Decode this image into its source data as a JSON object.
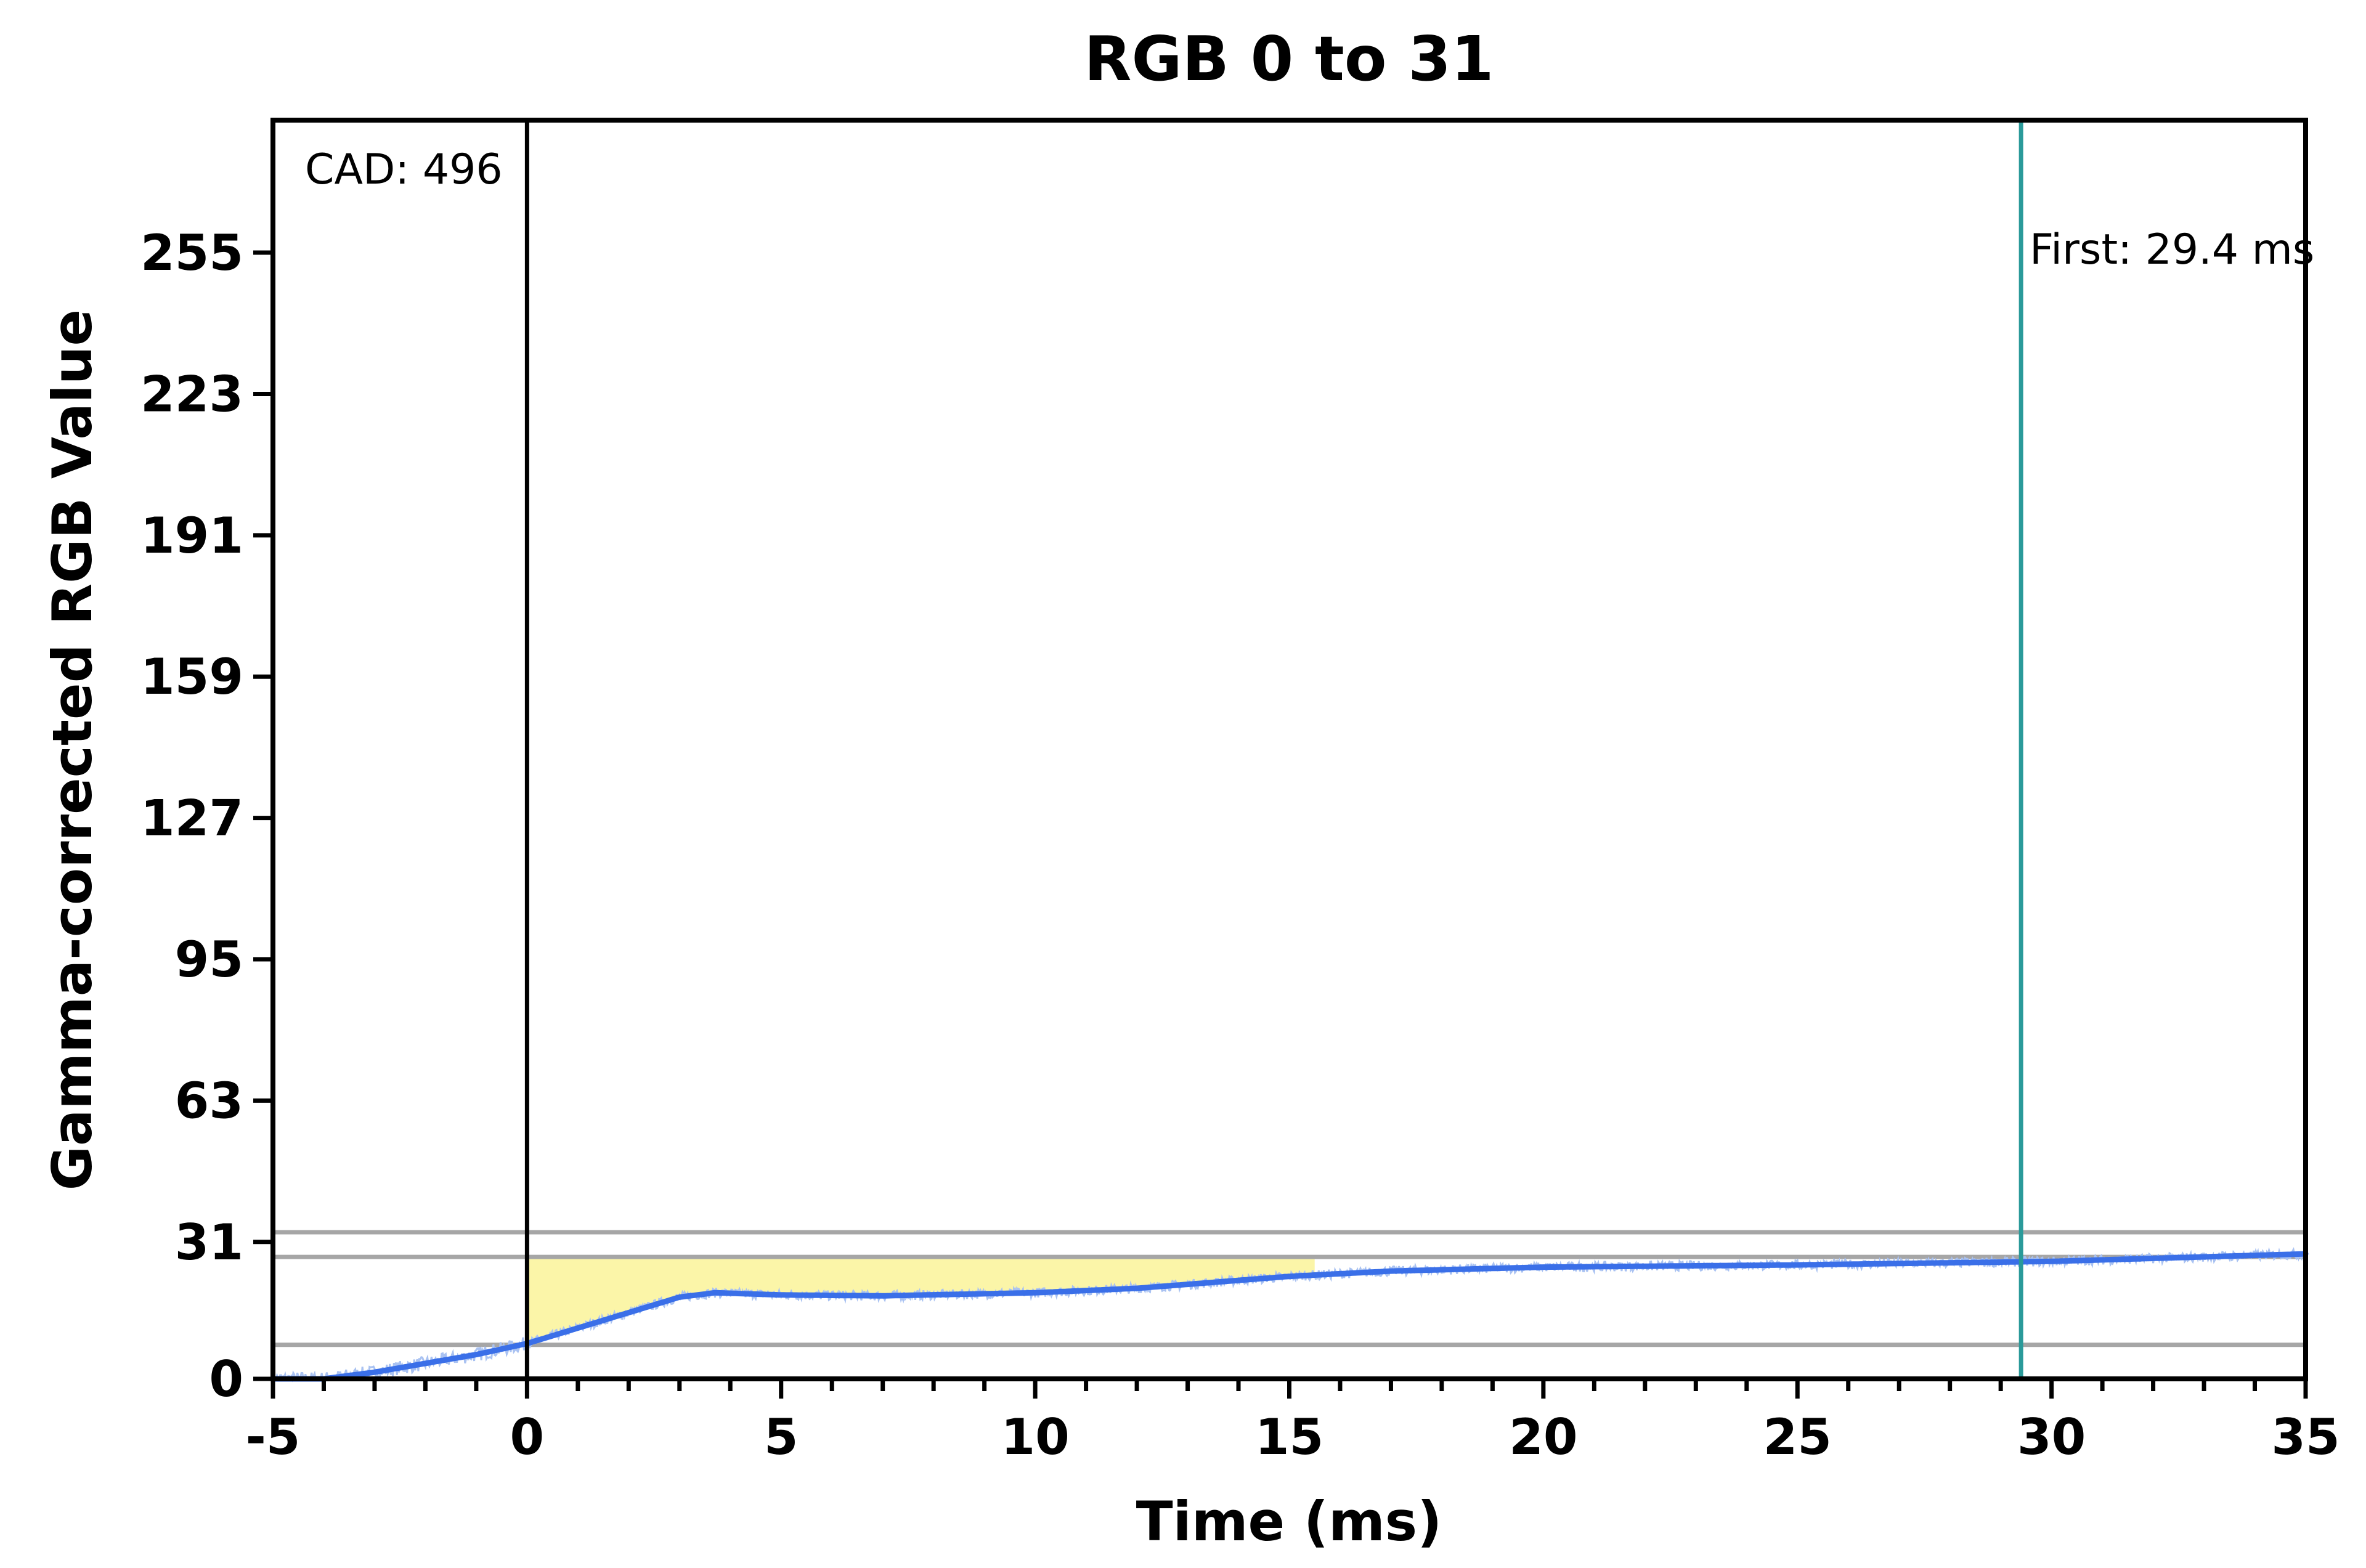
{
  "chart_data": {
    "type": "line",
    "title": "RGB 0 to 31",
    "xlabel": "Time (ms)",
    "ylabel": "Gamma-corrected RGB Value",
    "xlim": [
      -5,
      35
    ],
    "ylim": [
      0,
      285
    ],
    "x_ticks": [
      "-5",
      "0",
      "5",
      "10",
      "15",
      "20",
      "25",
      "30",
      "35"
    ],
    "y_ticks": [
      "0",
      "31",
      "63",
      "95",
      "127",
      "159",
      "191",
      "223",
      "255"
    ],
    "grid": false,
    "series": [
      {
        "x": [
          -5,
          -4,
          -3,
          -2,
          -1,
          0,
          1,
          2,
          3,
          3.7,
          5,
          7,
          10,
          12,
          15,
          17,
          20,
          25,
          30,
          35
        ],
        "y": [
          0,
          0,
          1.5,
          3.5,
          5.5,
          8,
          11.5,
          15,
          18.5,
          19.5,
          19,
          18.8,
          19.5,
          20.5,
          23.2,
          24.4,
          25.3,
          25.8,
          26.6,
          28.3
        ]
      }
    ],
    "reference_lines": {
      "horizontal": [
        7.7,
        27.6,
        33.2
      ],
      "vertical": [
        0,
        29.4
      ]
    },
    "shaded_region": {
      "x_start": 0,
      "x_end": 15.5,
      "upper": 27.6
    },
    "annotations": {
      "cad": "CAD: 496",
      "first": "First: 29.4 ms"
    },
    "colors": {
      "line": "#3a6fe8",
      "noise": "#a9c2f2",
      "shade": "#fbf5a8",
      "reference": "#a6a6a6",
      "marker_first": "#2a9a9a",
      "marker_zero": "#000000"
    }
  }
}
